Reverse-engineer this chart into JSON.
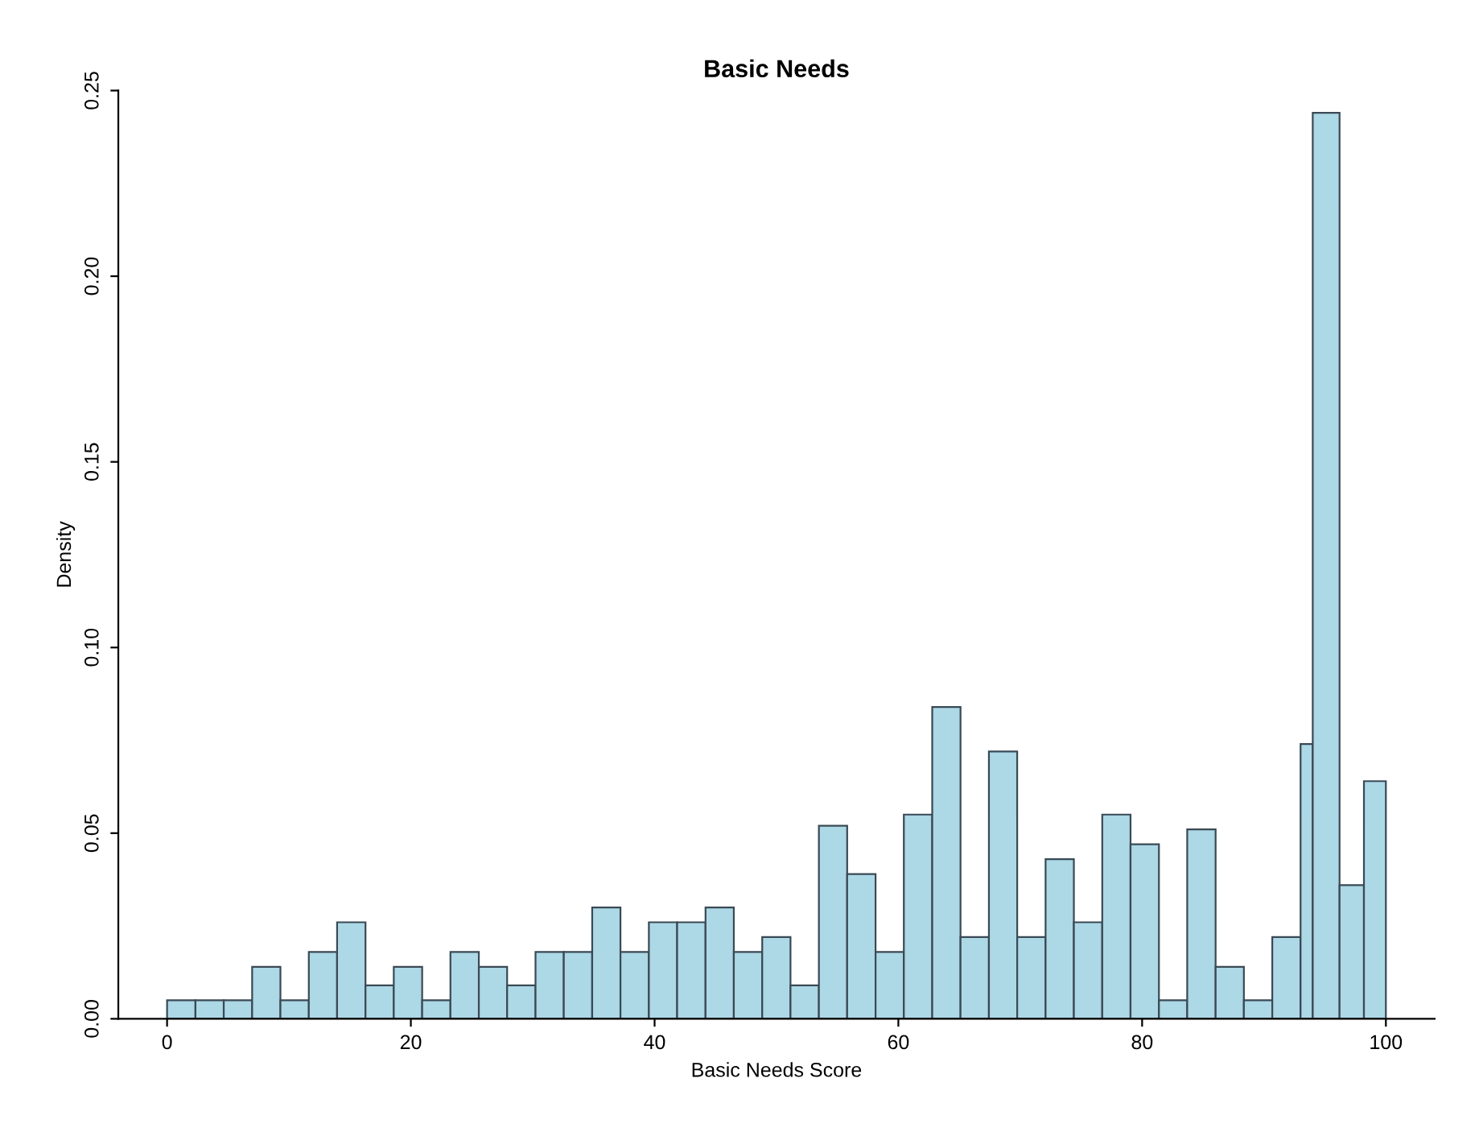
{
  "chart_data": {
    "type": "histogram",
    "title": "Basic Needs",
    "xlabel": "Basic Needs Score",
    "ylabel": "Density",
    "bins": [
      0,
      2.33,
      4.65,
      6.98,
      9.3,
      11.63,
      13.95,
      16.28,
      18.6,
      20.93,
      23.25,
      25.58,
      27.9,
      30.23,
      32.55,
      34.88,
      37.2,
      39.53,
      41.85,
      44.18,
      46.5,
      48.83,
      51.15,
      53.48,
      55.8,
      58.13,
      60.45,
      62.78,
      65.1,
      67.43,
      69.75,
      72.08,
      74.4,
      76.73,
      79.05,
      81.38,
      83.7,
      86.03,
      88.35,
      90.68,
      93,
      94,
      96.2,
      98.2,
      100
    ],
    "values": [
      0.005,
      0.005,
      0.005,
      0.014,
      0.005,
      0.018,
      0.026,
      0.009,
      0.014,
      0.005,
      0.018,
      0.014,
      0.009,
      0.018,
      0.018,
      0.03,
      0.018,
      0.026,
      0.026,
      0.03,
      0.018,
      0.022,
      0.009,
      0.052,
      0.039,
      0.018,
      0.055,
      0.084,
      0.022,
      0.072,
      0.022,
      0.043,
      0.026,
      0.055,
      0.047,
      0.005,
      0.051,
      0.014,
      0.005,
      0.022,
      0.074,
      0.244,
      0.036,
      0.064
    ],
    "color": "#add8e6",
    "xlim": [
      -4,
      104
    ],
    "xticks": [
      0,
      20,
      40,
      60,
      80,
      100
    ],
    "ylim": [
      0,
      0.25
    ],
    "yticks": [
      {
        "value": 0,
        "label": "0.00"
      },
      {
        "value": 0.05,
        "label": "0.05"
      },
      {
        "value": 0.1,
        "label": "0.10"
      },
      {
        "value": 0.15,
        "label": "0.15"
      },
      {
        "value": 0.2,
        "label": "0.20"
      },
      {
        "value": 0.25,
        "label": "0.25"
      }
    ],
    "grid": false
  }
}
